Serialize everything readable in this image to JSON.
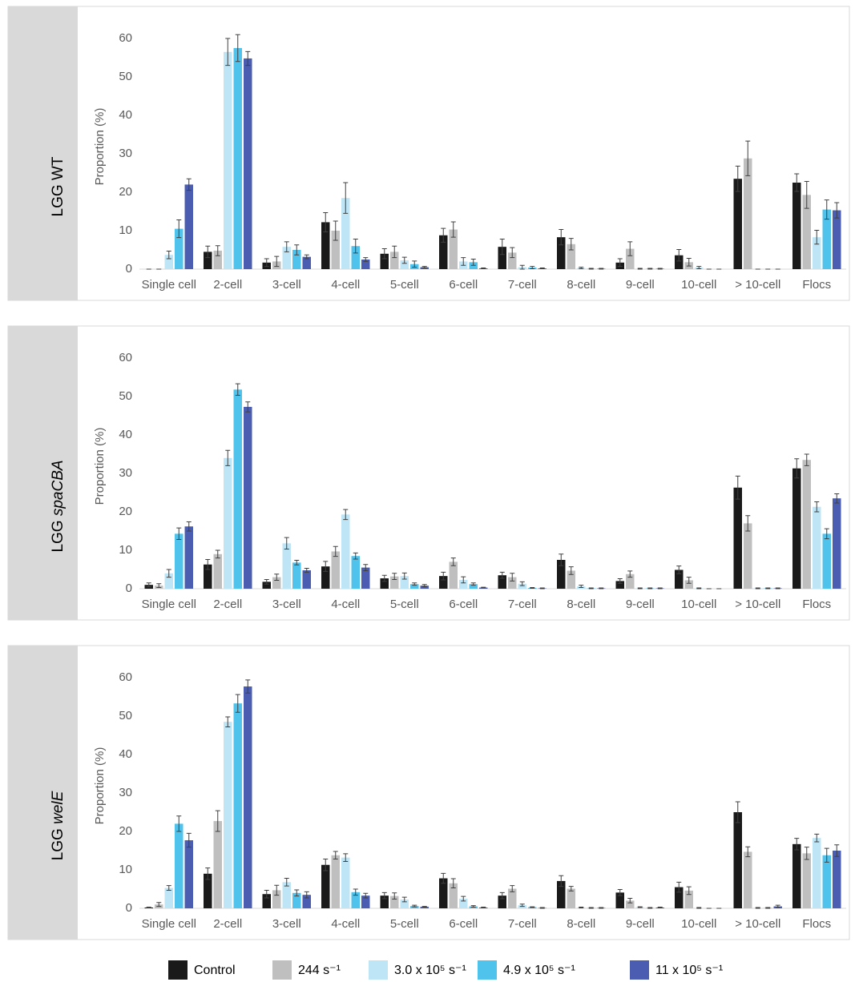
{
  "chart_data": [
    {
      "type": "bar",
      "label": {
        "prefix": "LGG",
        "name": "WT",
        "italic": false
      },
      "y_label": "Proportion (%)",
      "categories": [
        "Single cell",
        "2-cell",
        "3-cell",
        "4-cell",
        "5-cell",
        "6-cell",
        "7-cell",
        "8-cell",
        "9-cell",
        "10-cell",
        "> 10-cell",
        "Flocs"
      ],
      "ylim": [
        0,
        60
      ],
      "yticks": [
        0,
        10,
        20,
        30,
        40,
        50,
        60
      ],
      "series": [
        {
          "name": "Control",
          "color": "#1a1a1a",
          "values": [
            0,
            4.5,
            1.7,
            12.2,
            4,
            8.8,
            5.8,
            8.3,
            1.7,
            3.6,
            23.5,
            22.5
          ],
          "errors": [
            0,
            1.5,
            1,
            2.5,
            1.3,
            1.8,
            2,
            2,
            1,
            1.5,
            3.3,
            2.3
          ]
        },
        {
          "name": "244 s⁻¹",
          "color": "#bfbfbf",
          "values": [
            0,
            4.8,
            2,
            10,
            4.5,
            10.3,
            4.3,
            6.5,
            5.3,
            1.8,
            28.8,
            19.3
          ],
          "errors": [
            0,
            1.3,
            1.3,
            2.5,
            1.5,
            2,
            1.3,
            1.5,
            1.8,
            1,
            4.5,
            3.5
          ]
        },
        {
          "name": "3.0 x 10⁵ s⁻¹",
          "color": "#bde5f5",
          "values": [
            3.7,
            56.5,
            5.8,
            18.5,
            2.3,
            2,
            0.5,
            0.3,
            0.1,
            0.4,
            0,
            8.3
          ],
          "errors": [
            1,
            3.5,
            1.3,
            4,
            0.8,
            1,
            0.5,
            0.2,
            0.1,
            0.3,
            0,
            1.8
          ]
        },
        {
          "name": "4.9 x 10⁵ s⁻¹",
          "color": "#4fc3ec",
          "values": [
            10.5,
            57.5,
            5,
            6,
            1.3,
            1.8,
            0.4,
            0.1,
            0.1,
            0,
            0,
            15.5
          ],
          "errors": [
            2.3,
            3.5,
            1.3,
            1.8,
            0.8,
            0.8,
            0.3,
            0.1,
            0.1,
            0,
            0,
            2.5
          ]
        },
        {
          "name": "11 x 10⁵ s⁻¹",
          "color": "#4a5db0",
          "values": [
            22,
            54.8,
            3.2,
            2.5,
            0.5,
            0.2,
            0.2,
            0.1,
            0.1,
            0,
            0,
            15.3
          ],
          "errors": [
            1.5,
            1.8,
            0.5,
            0.5,
            0.2,
            0.1,
            0.1,
            0.1,
            0.1,
            0,
            0,
            2
          ]
        }
      ]
    },
    {
      "type": "bar",
      "label": {
        "prefix": "LGG",
        "name": "spaCBA",
        "italic": true
      },
      "y_label": "Proportion (%)",
      "categories": [
        "Single cell",
        "2-cell",
        "3-cell",
        "4-cell",
        "5-cell",
        "6-cell",
        "7-cell",
        "8-cell",
        "9-cell",
        "10-cell",
        "> 10-cell",
        "Flocs"
      ],
      "ylim": [
        0,
        60
      ],
      "yticks": [
        0,
        10,
        20,
        30,
        40,
        50,
        60
      ],
      "series": [
        {
          "values": [
            1,
            6.3,
            1.8,
            5.8,
            2.7,
            3.3,
            3.5,
            7.5,
            2,
            4.9,
            26.3,
            31.3
          ],
          "errors": [
            0.5,
            1.3,
            0.6,
            1.3,
            0.8,
            1,
            0.8,
            1.5,
            0.6,
            1,
            3,
            2.5
          ]
        },
        {
          "values": [
            0.8,
            9,
            3,
            9.7,
            3.2,
            7,
            3,
            4.7,
            3.8,
            2.2,
            17,
            33.5
          ],
          "errors": [
            0.5,
            1,
            0.8,
            1.3,
            0.8,
            1,
            1,
            1,
            0.8,
            0.8,
            2,
            1.5
          ]
        },
        {
          "values": [
            4,
            34,
            11.8,
            19.3,
            3.3,
            2.3,
            1.3,
            0.6,
            0.1,
            0.1,
            0.1,
            21.3
          ],
          "errors": [
            1,
            2,
            1.5,
            1.3,
            0.8,
            0.8,
            0.5,
            0.3,
            0.1,
            0.1,
            0.1,
            1.3
          ]
        },
        {
          "values": [
            14.3,
            51.8,
            6.8,
            8.5,
            1.2,
            1.2,
            0.2,
            0.1,
            0.1,
            0,
            0.1,
            14.3
          ],
          "errors": [
            1.5,
            1.5,
            0.6,
            0.8,
            0.3,
            0.3,
            0.1,
            0.1,
            0.1,
            0,
            0.1,
            1.3
          ]
        },
        {
          "values": [
            16.2,
            47.3,
            4.8,
            5.5,
            0.8,
            0.3,
            0.1,
            0.1,
            0.1,
            0,
            0.1,
            23.5
          ],
          "errors": [
            1.2,
            1.3,
            0.5,
            0.8,
            0.3,
            0.1,
            0.1,
            0.1,
            0.1,
            0,
            0.1,
            1.2
          ]
        }
      ]
    },
    {
      "type": "bar",
      "label": {
        "prefix": "LGG",
        "name": "welE",
        "italic": true
      },
      "y_label": "Proportion (%)",
      "categories": [
        "Single cell",
        "2-cell",
        "3-cell",
        "4-cell",
        "5-cell",
        "6-cell",
        "7-cell",
        "8-cell",
        "9-cell",
        "10-cell",
        "> 10-cell",
        "Flocs"
      ],
      "ylim": [
        0,
        60
      ],
      "yticks": [
        0,
        10,
        20,
        30,
        40,
        50,
        60
      ],
      "series": [
        {
          "values": [
            0.2,
            9,
            3.7,
            11.3,
            3.3,
            7.8,
            3.3,
            7.1,
            4.1,
            5.5,
            25,
            16.7
          ],
          "errors": [
            0.1,
            1.5,
            1,
            1.5,
            0.8,
            1.3,
            0.8,
            1.4,
            0.8,
            1.3,
            2.7,
            1.5
          ]
        },
        {
          "values": [
            1,
            22.7,
            4.7,
            13.8,
            3.2,
            6.5,
            5.1,
            5.1,
            2,
            4.6,
            14.7,
            14.3
          ],
          "errors": [
            0.5,
            2.7,
            1.3,
            1,
            0.8,
            1.2,
            0.8,
            0.6,
            0.6,
            1,
            1.3,
            1.6
          ]
        },
        {
          "values": [
            5.3,
            48.5,
            6.8,
            13.2,
            2.3,
            2.5,
            0.8,
            0.2,
            0.3,
            0.1,
            0.1,
            18.3
          ],
          "errors": [
            0.6,
            1.3,
            1,
            1,
            0.6,
            0.6,
            0.3,
            0.1,
            0.1,
            0.1,
            0.1,
            1
          ]
        },
        {
          "values": [
            22,
            53.3,
            4,
            4.2,
            0.6,
            0.5,
            0.3,
            0.1,
            0.1,
            0,
            0.1,
            13.8
          ],
          "errors": [
            2,
            2.3,
            0.8,
            0.8,
            0.2,
            0.2,
            0.1,
            0.1,
            0.1,
            0,
            0.1,
            1.8
          ]
        },
        {
          "values": [
            17.7,
            57.7,
            3.5,
            3.3,
            0.4,
            0.2,
            0.1,
            0.1,
            0.2,
            0,
            0.5,
            15
          ],
          "errors": [
            1.8,
            1.7,
            0.8,
            0.6,
            0.1,
            0.1,
            0.1,
            0.1,
            0.1,
            0,
            0.3,
            1.5
          ]
        }
      ]
    }
  ]
}
